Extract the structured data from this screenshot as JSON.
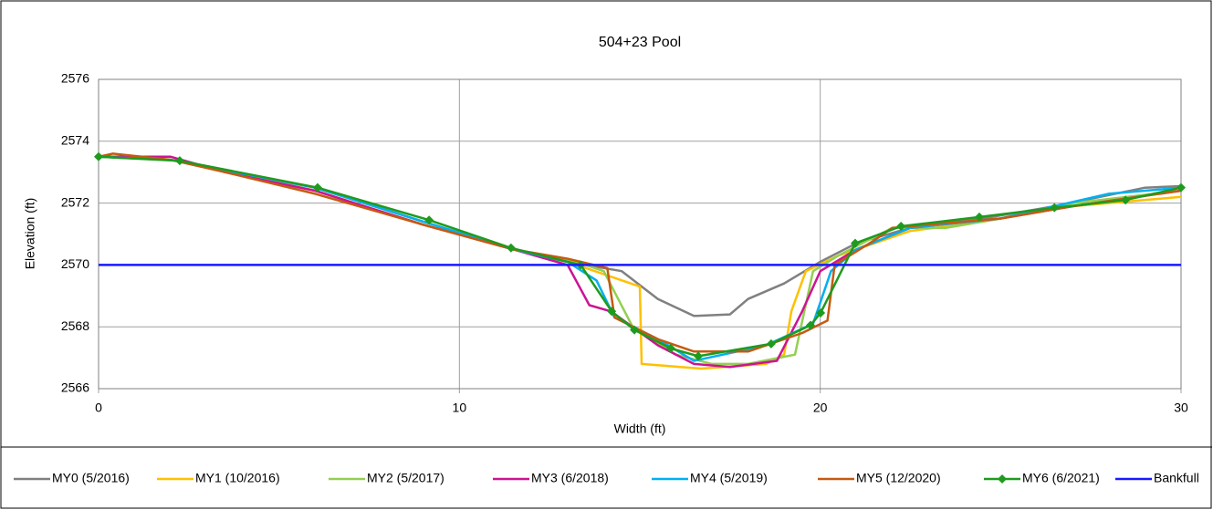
{
  "chart_data": {
    "type": "line",
    "title": "504+23 Pool",
    "xlabel": "Width (ft)",
    "ylabel": "Elevation (ft)",
    "xlim": [
      0,
      30
    ],
    "xticks": [
      0,
      10,
      20,
      30
    ],
    "ylim": [
      2566,
      2576
    ],
    "yticks": [
      2566,
      2568,
      2570,
      2572,
      2574,
      2576
    ],
    "grid": true,
    "legend": "bottom",
    "series": [
      {
        "name": "MY0 (5/2016)",
        "color": "#808080",
        "x": [
          0,
          2,
          6,
          9,
          11.5,
          13,
          14.5,
          15.5,
          16.5,
          17.5,
          18,
          19,
          20,
          21,
          22.5,
          24.5,
          26.5,
          29,
          30
        ],
        "values": [
          2573.5,
          2573.4,
          2572.5,
          2571.4,
          2570.5,
          2570.1,
          2569.8,
          2568.9,
          2568.35,
          2568.4,
          2568.9,
          2569.4,
          2570.1,
          2570.7,
          2571.2,
          2571.5,
          2571.9,
          2572.5,
          2572.55
        ]
      },
      {
        "name": "MY1 (10/2016)",
        "color": "#ffc000",
        "x": [
          0,
          2,
          6,
          9,
          11.5,
          13,
          15,
          15.05,
          16.7,
          18.5,
          19,
          19.2,
          19.6,
          20.5,
          22.5,
          24.5,
          27,
          30
        ],
        "values": [
          2573.5,
          2573.4,
          2572.4,
          2571.3,
          2570.5,
          2570.1,
          2569.3,
          2566.8,
          2566.65,
          2566.8,
          2567.1,
          2568.5,
          2569.8,
          2570.3,
          2571.1,
          2571.4,
          2571.9,
          2572.2
        ]
      },
      {
        "name": "MY2 (5/2017)",
        "color": "#92d050",
        "x": [
          0,
          2,
          6,
          9,
          11.5,
          13.5,
          14,
          14.8,
          16,
          17,
          18,
          19.3,
          19.8,
          20.5,
          22,
          23.5,
          25,
          27,
          30
        ],
        "values": [
          2573.5,
          2573.4,
          2572.4,
          2571.3,
          2570.5,
          2570.0,
          2569.8,
          2568,
          2567.1,
          2566.8,
          2566.8,
          2567.1,
          2569.8,
          2570.3,
          2571.2,
          2571.2,
          2571.5,
          2572,
          2572.4
        ]
      },
      {
        "name": "MY3 (6/2018)",
        "color": "#cc1493",
        "x": [
          0,
          2,
          3.5,
          6,
          9,
          11.5,
          13,
          13.6,
          14.2,
          15.5,
          16.5,
          17.5,
          18.8,
          19.5,
          20,
          21,
          22.5,
          25,
          27,
          30
        ],
        "values": [
          2573.5,
          2573.5,
          2573,
          2572.4,
          2571.3,
          2570.5,
          2570.0,
          2568.7,
          2568.5,
          2567.4,
          2566.8,
          2566.7,
          2566.9,
          2568.5,
          2569.8,
          2570.5,
          2571.2,
          2571.5,
          2571.9,
          2572.4
        ]
      },
      {
        "name": "MY4 (5/2019)",
        "color": "#00b0f0",
        "x": [
          0,
          2,
          6,
          9,
          11.5,
          13,
          13.8,
          14.3,
          15.5,
          16.5,
          18.5,
          19.8,
          20.3,
          21,
          22.5,
          25,
          28,
          30
        ],
        "values": [
          2573.5,
          2573.4,
          2572.5,
          2571.4,
          2570.5,
          2570.1,
          2569.5,
          2568.3,
          2567.6,
          2566.9,
          2567.4,
          2568.1,
          2569.8,
          2570.5,
          2571.2,
          2571.5,
          2572.3,
          2572.5
        ]
      },
      {
        "name": "MY5 (12/2020)",
        "color": "#c55a11",
        "x": [
          0,
          0.4,
          2,
          3.5,
          6,
          9,
          11.5,
          13,
          14.1,
          14.3,
          15.5,
          16.5,
          18,
          19.5,
          20.2,
          20.4,
          21.5,
          22,
          25,
          27,
          30
        ],
        "values": [
          2573.5,
          2573.6,
          2573.4,
          2573.0,
          2572.3,
          2571.3,
          2570.5,
          2570.2,
          2569.9,
          2568.3,
          2567.6,
          2567.2,
          2567.2,
          2567.8,
          2568.2,
          2570,
          2570.8,
          2571.2,
          2571.5,
          2571.9,
          2572.4
        ]
      },
      {
        "name": "MY6 (6/2021)",
        "color": "#1e9b1e",
        "marker": "diamond",
        "x": [
          0,
          2.25,
          6.07,
          9.16,
          11.43,
          13.36,
          14.22,
          14.85,
          15.86,
          16.62,
          18.64,
          19.73,
          20.01,
          20.97,
          22.24,
          24.41,
          26.49,
          28.46,
          30
        ],
        "values": [
          2573.5,
          2573.37,
          2572.5,
          2571.45,
          2570.55,
          2570.0,
          2568.5,
          2567.9,
          2567.3,
          2567.05,
          2567.45,
          2568.05,
          2568.45,
          2570.7,
          2571.25,
          2571.55,
          2571.85,
          2572.1,
          2572.5
        ]
      },
      {
        "name": "Bankfull",
        "color": "#1a1aff",
        "x": [
          0,
          30
        ],
        "values": [
          2570,
          2570
        ]
      }
    ]
  }
}
